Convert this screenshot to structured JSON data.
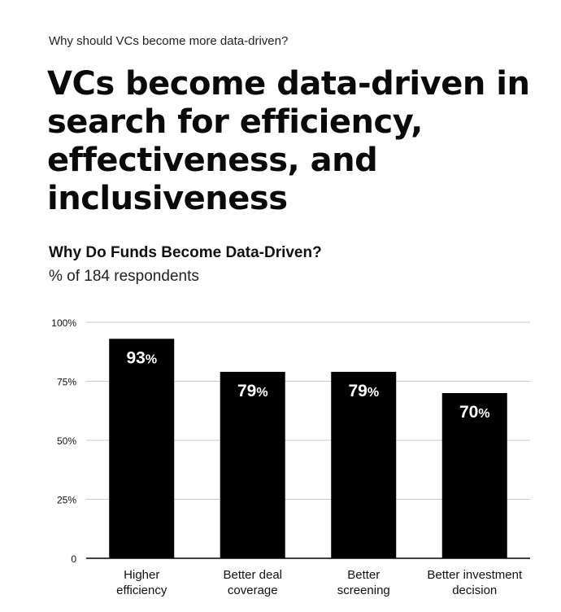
{
  "header": {
    "kicker": "Why should VCs become more data-driven?",
    "headline": "VCs become data-driven in search for efficiency, effectiveness, and inclusiveness"
  },
  "colors": {
    "bar": "#000000",
    "grid": "#c8c8c8",
    "axis": "#000000",
    "bar_label": "#ffffff",
    "text": "#111111"
  },
  "chart_data": {
    "type": "bar",
    "title": "Why Do Funds Become Data-Driven?",
    "subtitle": "% of 184 respondents",
    "categories": [
      [
        "Higher",
        "efficiency"
      ],
      [
        "Better deal",
        "coverage"
      ],
      [
        "Better",
        "screening"
      ],
      [
        "Better investment",
        "decision"
      ]
    ],
    "values": [
      93,
      79,
      79,
      70
    ],
    "value_suffix": "%",
    "ylim": [
      0,
      100
    ],
    "yticks": [
      0,
      25,
      50,
      75,
      100
    ],
    "ytick_labels": [
      "0",
      "25%",
      "50%",
      "75%",
      "100%"
    ],
    "grid": true,
    "xlabel": "",
    "ylabel": ""
  }
}
